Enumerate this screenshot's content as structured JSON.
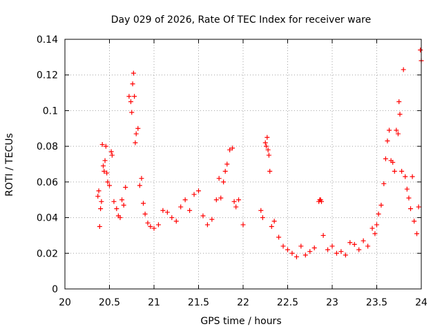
{
  "chart_data": {
    "type": "scatter",
    "title": "Day 029 of 2026, Rate Of TEC Index for receiver ware",
    "xlabel": "GPS time / hours",
    "ylabel": "ROTI / TECUs",
    "xlim": [
      20,
      24
    ],
    "ylim": [
      0,
      0.14
    ],
    "x_ticks": [
      20,
      20.5,
      21,
      21.5,
      22,
      22.5,
      23,
      23.5,
      24
    ],
    "x_tick_labels": [
      "20",
      "20.5",
      "21",
      "21.5",
      "22",
      "22.5",
      "23",
      "23.5",
      "24"
    ],
    "y_ticks": [
      0,
      0.02,
      0.04,
      0.06,
      0.08,
      0.1,
      0.12,
      0.14
    ],
    "y_tick_labels": [
      "0",
      "0.02",
      "0.04",
      "0.06",
      "0.08",
      "0.1",
      "0.12",
      "0.14"
    ],
    "grid": true,
    "marker": "+",
    "color": "#ff0000",
    "series": [
      {
        "name": "ROTI",
        "points": [
          [
            20.37,
            0.052
          ],
          [
            20.38,
            0.055
          ],
          [
            20.39,
            0.035
          ],
          [
            20.4,
            0.045
          ],
          [
            20.41,
            0.049
          ],
          [
            20.42,
            0.081
          ],
          [
            20.43,
            0.069
          ],
          [
            20.44,
            0.066
          ],
          [
            20.45,
            0.072
          ],
          [
            20.46,
            0.08
          ],
          [
            20.47,
            0.065
          ],
          [
            20.48,
            0.06
          ],
          [
            20.5,
            0.058
          ],
          [
            20.52,
            0.077
          ],
          [
            20.53,
            0.075
          ],
          [
            20.55,
            0.049
          ],
          [
            20.58,
            0.045
          ],
          [
            20.6,
            0.041
          ],
          [
            20.62,
            0.04
          ],
          [
            20.64,
            0.05
          ],
          [
            20.66,
            0.047
          ],
          [
            20.68,
            0.057
          ],
          [
            20.72,
            0.108
          ],
          [
            20.74,
            0.105
          ],
          [
            20.75,
            0.099
          ],
          [
            20.76,
            0.115
          ],
          [
            20.77,
            0.121
          ],
          [
            20.78,
            0.108
          ],
          [
            20.79,
            0.082
          ],
          [
            20.8,
            0.087
          ],
          [
            20.82,
            0.09
          ],
          [
            20.84,
            0.058
          ],
          [
            20.86,
            0.062
          ],
          [
            20.88,
            0.048
          ],
          [
            20.9,
            0.042
          ],
          [
            20.93,
            0.037
          ],
          [
            20.96,
            0.035
          ],
          [
            21.0,
            0.034
          ],
          [
            21.05,
            0.036
          ],
          [
            21.1,
            0.044
          ],
          [
            21.15,
            0.043
          ],
          [
            21.2,
            0.04
          ],
          [
            21.25,
            0.038
          ],
          [
            21.3,
            0.046
          ],
          [
            21.35,
            0.05
          ],
          [
            21.4,
            0.044
          ],
          [
            21.45,
            0.053
          ],
          [
            21.5,
            0.055
          ],
          [
            21.55,
            0.041
          ],
          [
            21.6,
            0.036
          ],
          [
            21.65,
            0.039
          ],
          [
            21.7,
            0.05
          ],
          [
            21.73,
            0.062
          ],
          [
            21.75,
            0.051
          ],
          [
            21.78,
            0.06
          ],
          [
            21.8,
            0.066
          ],
          [
            21.82,
            0.07
          ],
          [
            21.85,
            0.078
          ],
          [
            21.88,
            0.079
          ],
          [
            21.9,
            0.049
          ],
          [
            21.92,
            0.046
          ],
          [
            21.95,
            0.05
          ],
          [
            22.0,
            0.036
          ],
          [
            22.2,
            0.044
          ],
          [
            22.22,
            0.04
          ],
          [
            22.25,
            0.082
          ],
          [
            22.26,
            0.08
          ],
          [
            22.27,
            0.085
          ],
          [
            22.28,
            0.078
          ],
          [
            22.29,
            0.075
          ],
          [
            22.3,
            0.066
          ],
          [
            22.32,
            0.035
          ],
          [
            22.35,
            0.038
          ],
          [
            22.4,
            0.029
          ],
          [
            22.45,
            0.024
          ],
          [
            22.5,
            0.022
          ],
          [
            22.55,
            0.02
          ],
          [
            22.6,
            0.018
          ],
          [
            22.65,
            0.024
          ],
          [
            22.7,
            0.019
          ],
          [
            22.75,
            0.021
          ],
          [
            22.8,
            0.023
          ],
          [
            22.85,
            0.049
          ],
          [
            22.86,
            0.05
          ],
          [
            22.87,
            0.05
          ],
          [
            22.88,
            0.049
          ],
          [
            22.9,
            0.03
          ],
          [
            22.95,
            0.022
          ],
          [
            23.0,
            0.024
          ],
          [
            23.05,
            0.02
          ],
          [
            23.1,
            0.021
          ],
          [
            23.15,
            0.019
          ],
          [
            23.2,
            0.026
          ],
          [
            23.25,
            0.025
          ],
          [
            23.3,
            0.022
          ],
          [
            23.35,
            0.027
          ],
          [
            23.4,
            0.024
          ],
          [
            23.45,
            0.034
          ],
          [
            23.48,
            0.031
          ],
          [
            23.5,
            0.036
          ],
          [
            23.52,
            0.042
          ],
          [
            23.55,
            0.047
          ],
          [
            23.58,
            0.059
          ],
          [
            23.6,
            0.073
          ],
          [
            23.62,
            0.083
          ],
          [
            23.64,
            0.089
          ],
          [
            23.66,
            0.072
          ],
          [
            23.68,
            0.071
          ],
          [
            23.7,
            0.066
          ],
          [
            23.72,
            0.089
          ],
          [
            23.74,
            0.087
          ],
          [
            23.75,
            0.105
          ],
          [
            23.76,
            0.098
          ],
          [
            23.78,
            0.066
          ],
          [
            23.8,
            0.123
          ],
          [
            23.82,
            0.063
          ],
          [
            23.84,
            0.056
          ],
          [
            23.86,
            0.051
          ],
          [
            23.88,
            0.045
          ],
          [
            23.9,
            0.063
          ],
          [
            23.92,
            0.038
          ],
          [
            23.95,
            0.031
          ],
          [
            23.97,
            0.046
          ],
          [
            23.99,
            0.134
          ],
          [
            24.0,
            0.128
          ]
        ]
      }
    ]
  }
}
